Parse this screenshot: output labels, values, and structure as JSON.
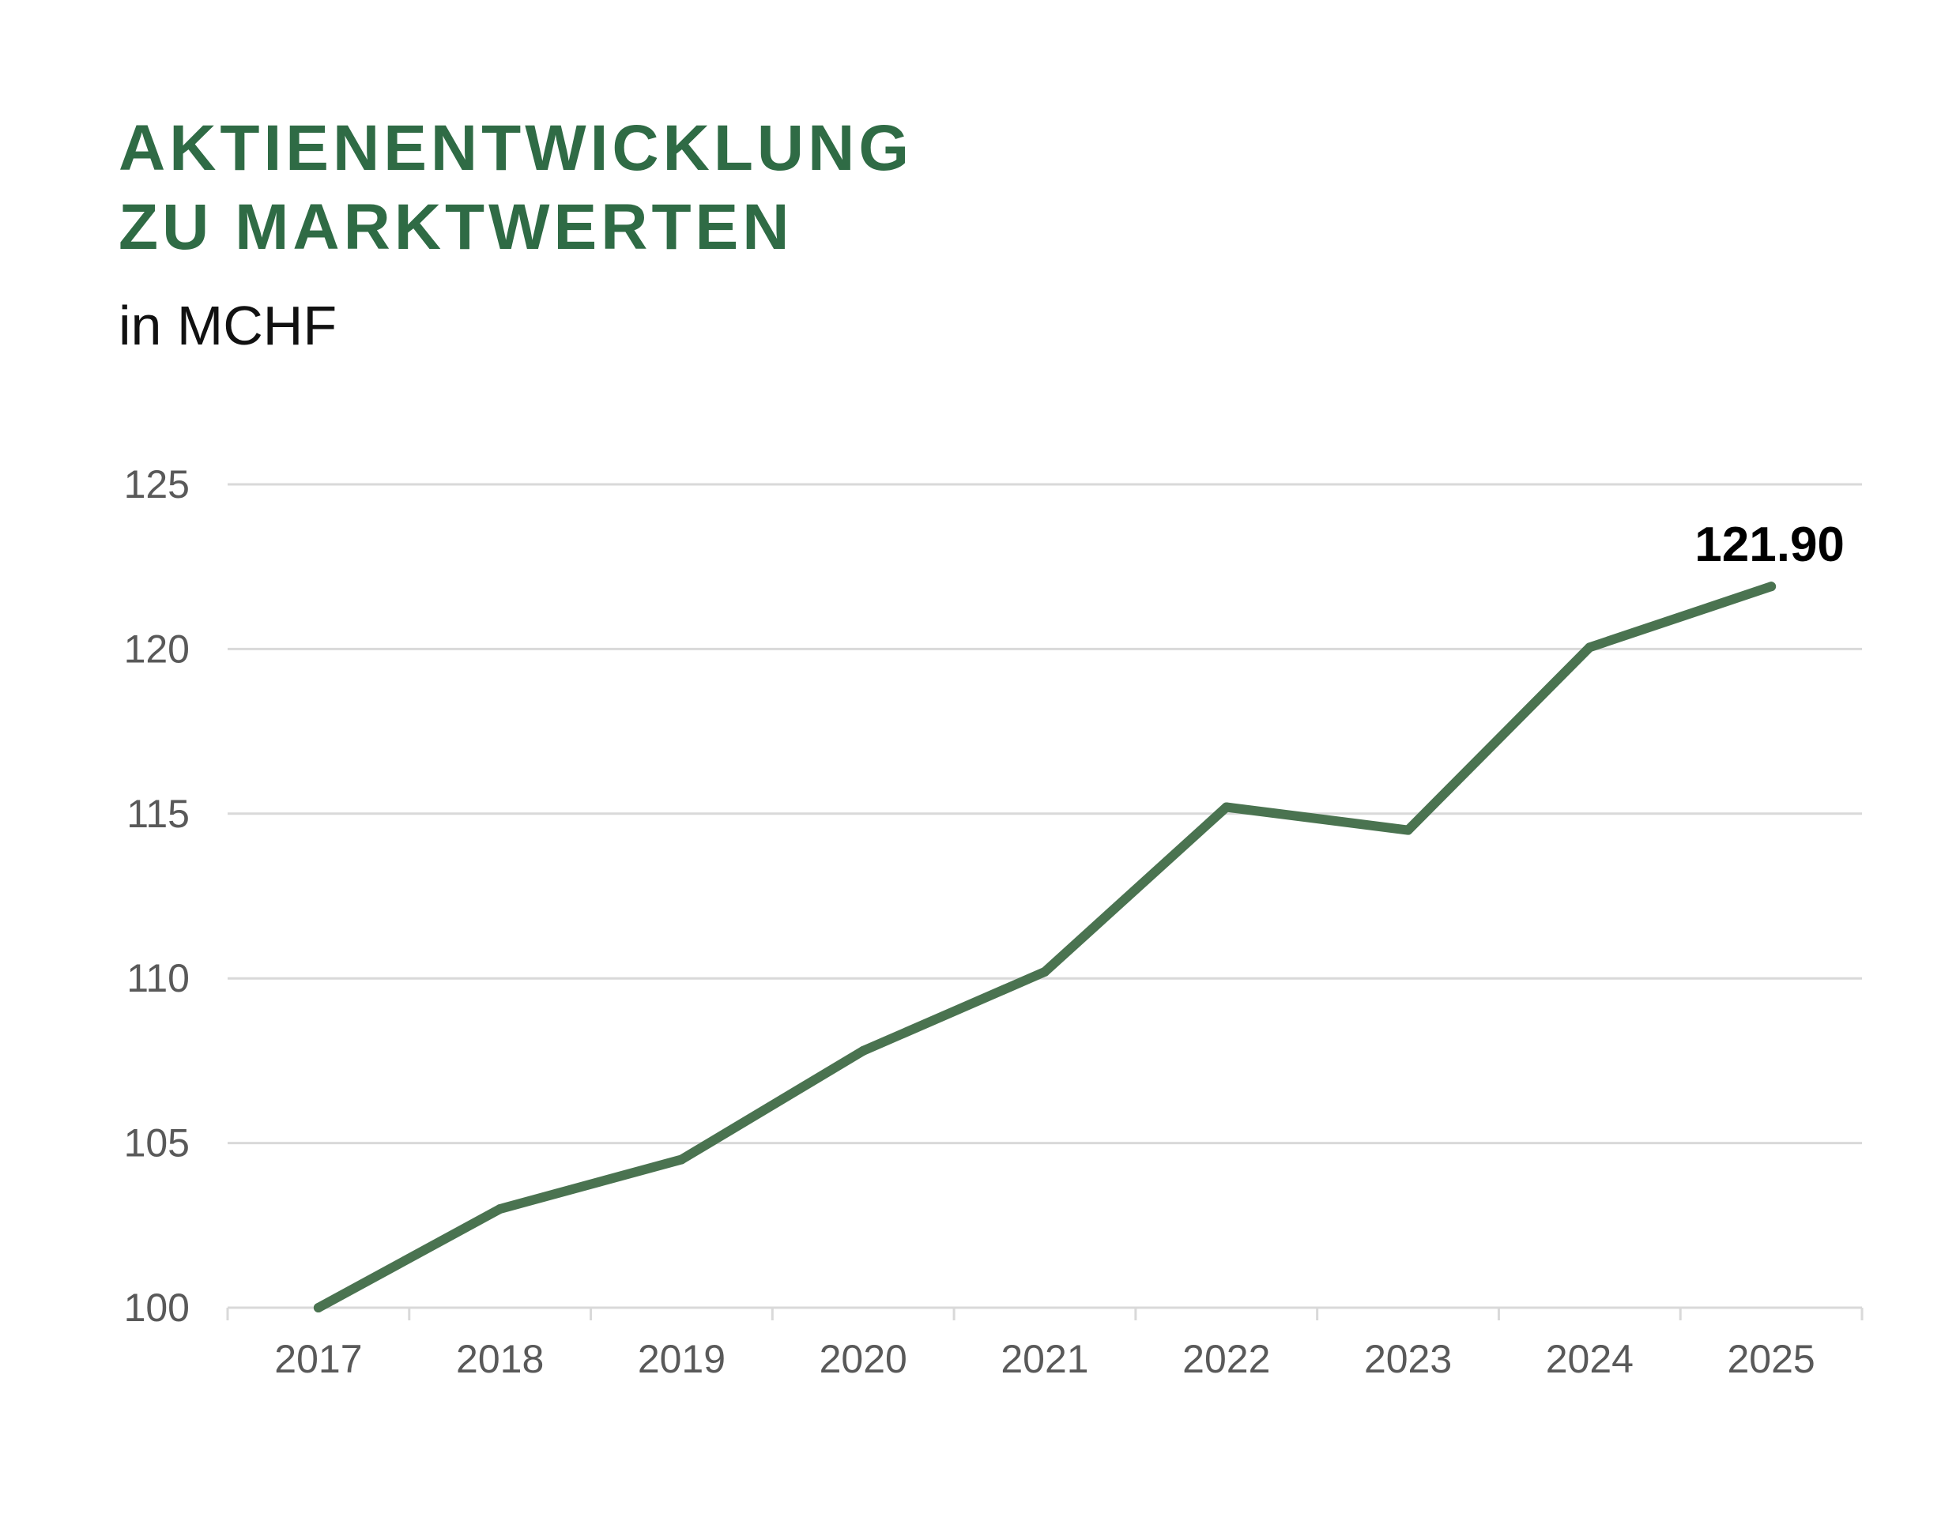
{
  "header": {
    "title_line1": "AKTIENENTWICKLUNG",
    "title_line2": "ZU MARKTWERTEN",
    "subtitle": "in MCHF"
  },
  "colors": {
    "title": "#2f6b45",
    "line": "#4a7350",
    "grid": "#d9d9d9",
    "tick_label": "#595959",
    "data_label": "#000000"
  },
  "chart_data": {
    "type": "line",
    "title": "AKTIENENTWICKLUNG ZU MARKTWERTEN",
    "subtitle": "in MCHF",
    "xlabel": "",
    "ylabel": "",
    "categories": [
      "2017",
      "2018",
      "2019",
      "2020",
      "2021",
      "2022",
      "2023",
      "2024",
      "2025"
    ],
    "series": [
      {
        "values": [
          100.0,
          103.0,
          104.5,
          107.8,
          110.2,
          115.2,
          114.5,
          120.05,
          121.9
        ]
      }
    ],
    "ylim": [
      100,
      125
    ],
    "yticks": [
      100,
      105,
      110,
      115,
      120,
      125
    ],
    "grid": true,
    "legend": "none",
    "annotations": [
      {
        "category": "2025",
        "text": "121.90"
      }
    ]
  }
}
